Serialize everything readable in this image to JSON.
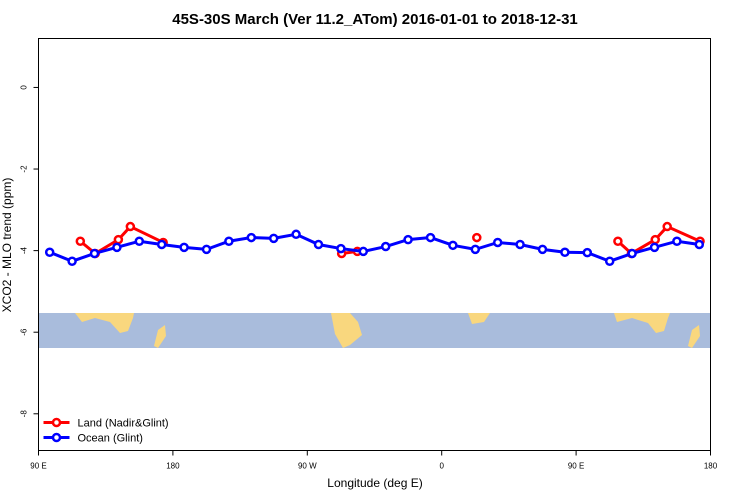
{
  "chart_data": {
    "type": "line",
    "title": "45S-30S March (Ver 11.2_ATom)   2016-01-01 to 2018-12-31",
    "x_label": "Longitude (deg E)",
    "y_label": "XCO2 - MLO trend (ppm)",
    "xlim": [
      90,
      540
    ],
    "ylim": [
      -8.9,
      1.2
    ],
    "xticks": [
      {
        "value": 90,
        "label": "90 E"
      },
      180,
      {
        "value": 270,
        "label": "90 W"
      },
      {
        "value": 360,
        "label": "0"
      },
      {
        "value": 450,
        "label": "90 E"
      },
      {
        "value": 540,
        "label": "180"
      }
    ],
    "yticks": [
      0,
      -2,
      -4,
      -6,
      -8
    ],
    "legend": "bottom-left",
    "series": [
      {
        "name": "Land (Nadir&Glint)",
        "color": "#ff0000",
        "x": [
          118,
          128,
          143.5,
          151.5,
          173.5,
          null,
          293,
          303.5,
          null,
          383.5,
          null,
          478,
          487,
          503,
          511,
          533
        ],
        "values": [
          -3.77,
          -4.07,
          -3.73,
          -3.41,
          -3.8,
          null,
          -4.07,
          -4.02,
          null,
          -3.68,
          null,
          -3.77,
          -4.07,
          -3.73,
          -3.41,
          -3.77
        ]
      },
      {
        "name": "Ocean (Glint)",
        "color": "#0000ff",
        "x": [
          97.5,
          112.5,
          127.5,
          142.5,
          157.5,
          172.5,
          187.5,
          202.5,
          217.5,
          232.5,
          247.5,
          262.5,
          277.5,
          292.5,
          307.5,
          322.5,
          337.5,
          352.5,
          367.5,
          382.5,
          397.5,
          412.5,
          427.5,
          442.5,
          457.5,
          472.5,
          487.5,
          502.5,
          517.5,
          532.5
        ],
        "values": [
          -4.04,
          -4.26,
          -4.07,
          -3.92,
          -3.77,
          -3.85,
          -3.92,
          -3.97,
          -3.77,
          -3.68,
          -3.7,
          -3.6,
          -3.85,
          -3.95,
          -4.02,
          -3.9,
          -3.73,
          -3.68,
          -3.87,
          -3.97,
          -3.8,
          -3.85,
          -3.97,
          -4.04,
          -4.05,
          -4.26,
          -4.07,
          -3.92,
          -3.77,
          -3.85
        ]
      }
    ]
  }
}
